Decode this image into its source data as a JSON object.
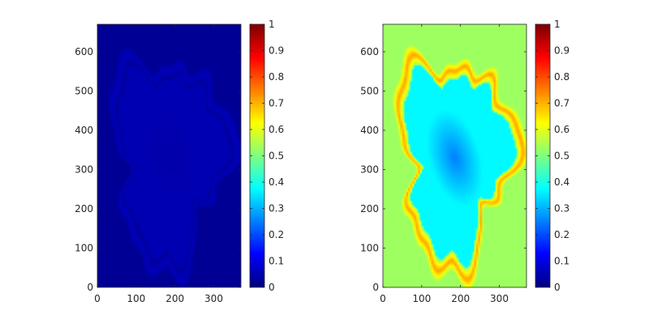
{
  "chart_data": [
    {
      "type": "heatmap",
      "colormap": "jet",
      "colormap_stops": [
        "#00008F",
        "#0000FF",
        "#00FFFF",
        "#FFFF00",
        "#FF0000",
        "#800000"
      ],
      "xlim": [
        0,
        370
      ],
      "ylim": [
        0,
        670
      ],
      "xticks": [
        "0",
        "100",
        "200",
        "300"
      ],
      "yticks": [
        "0",
        "100",
        "200",
        "300",
        "400",
        "500",
        "600"
      ],
      "clim": [
        0,
        1
      ],
      "colorbar_ticks": [
        "0",
        "0.1",
        "0.2",
        "0.3",
        "0.4",
        "0.5",
        "0.6",
        "0.7",
        "0.8",
        "0.9",
        "1"
      ],
      "field": {
        "background": 0.02,
        "inner_region": 0.05,
        "boundary_band": 0.06,
        "core_value": 0.04
      }
    },
    {
      "type": "heatmap",
      "colormap": "jet",
      "colormap_stops": [
        "#00008F",
        "#0000FF",
        "#00FFFF",
        "#FFFF00",
        "#FF0000",
        "#800000"
      ],
      "xlim": [
        0,
        370
      ],
      "ylim": [
        0,
        670
      ],
      "xticks": [
        "0",
        "100",
        "200",
        "300"
      ],
      "yticks": [
        "0",
        "100",
        "200",
        "300",
        "400",
        "500",
        "600"
      ],
      "clim": [
        0,
        1
      ],
      "colorbar_ticks": [
        "0",
        "0.1",
        "0.2",
        "0.3",
        "0.4",
        "0.5",
        "0.6",
        "0.7",
        "0.8",
        "0.9",
        "1"
      ],
      "field": {
        "background": 0.53,
        "inner_region": 0.37,
        "boundary_band": 0.72,
        "core_value": 0.25
      }
    }
  ]
}
